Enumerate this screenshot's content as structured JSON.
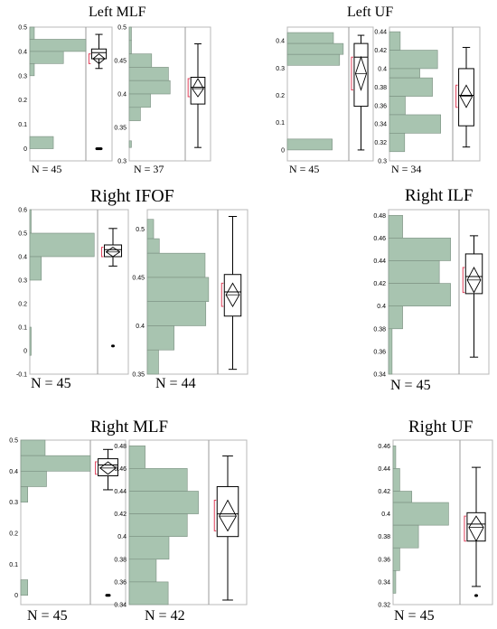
{
  "chart_data": [
    {
      "id": "lmlf_a",
      "type": "histogram",
      "title": "Left MLF",
      "n_label": "N = 45",
      "color": "#a8c4b0",
      "ylim": [
        -0.05,
        0.5
      ],
      "ticks": [
        "0",
        "0.1",
        "0.2",
        "0.3",
        "0.4",
        "0.5"
      ],
      "tick_values": [
        0,
        0.1,
        0.2,
        0.3,
        0.4,
        0.5
      ],
      "bins": [
        [
          0.45,
          0.5,
          0.08
        ],
        [
          0.4,
          0.45,
          1.0
        ],
        [
          0.35,
          0.4,
          0.6
        ],
        [
          0.3,
          0.35,
          0.08
        ],
        [
          0,
          0.05,
          0.42
        ]
      ],
      "box": {
        "min": 0.33,
        "q1": 0.37,
        "median": 0.395,
        "q3": 0.41,
        "max": 0.47,
        "mean": 0.37,
        "ci": [
          0.35,
          0.39
        ],
        "outliers": [
          0.0,
          0.0,
          0.0
        ]
      }
    },
    {
      "id": "lmlf_b",
      "type": "histogram",
      "title": "",
      "n_label": "N = 37",
      "color": "#a8c4b0",
      "ylim": [
        0.3,
        0.5
      ],
      "ticks": [
        "0.3",
        "0.35",
        "0.4",
        "0.45",
        "0.5"
      ],
      "tick_values": [
        0.3,
        0.35,
        0.4,
        0.45,
        0.5
      ],
      "bins": [
        [
          0.48,
          0.5,
          0.04
        ],
        [
          0.46,
          0.48,
          0.04
        ],
        [
          0.44,
          0.46,
          0.4
        ],
        [
          0.42,
          0.44,
          0.7
        ],
        [
          0.4,
          0.42,
          0.73
        ],
        [
          0.38,
          0.4,
          0.38
        ],
        [
          0.36,
          0.38,
          0.2
        ],
        [
          0.32,
          0.33,
          0.04
        ]
      ],
      "box": {
        "min": 0.32,
        "q1": 0.385,
        "median": 0.41,
        "q3": 0.425,
        "max": 0.475,
        "mean": 0.408,
        "ci": [
          0.396,
          0.423
        ],
        "outliers": []
      }
    },
    {
      "id": "luf_a",
      "type": "histogram",
      "title": "Left UF",
      "n_label": "N = 45",
      "color": "#a8c4b0",
      "ylim": [
        -0.04,
        0.45
      ],
      "ticks": [
        "0",
        "0.1",
        "0.2",
        "0.3",
        "0.4"
      ],
      "tick_values": [
        0,
        0.1,
        0.2,
        0.3,
        0.4
      ],
      "bins": [
        [
          0.39,
          0.43,
          0.75
        ],
        [
          0.35,
          0.39,
          0.91
        ],
        [
          0.31,
          0.35,
          0.85
        ],
        [
          0,
          0.04,
          0.73
        ]
      ],
      "box": {
        "min": 0.0,
        "q1": 0.16,
        "median": 0.34,
        "q3": 0.39,
        "max": 0.42,
        "mean": 0.28,
        "ci": [
          0.22,
          0.34
        ],
        "outliers": []
      }
    },
    {
      "id": "luf_b",
      "type": "histogram",
      "title": "",
      "n_label": "N = 34",
      "color": "#a8c4b0",
      "ylim": [
        0.3,
        0.445
      ],
      "ticks": [
        "0.3",
        "0.32",
        "0.34",
        "0.36",
        "0.38",
        "0.4",
        "0.42",
        "0.44"
      ],
      "tick_values": [
        0.3,
        0.32,
        0.34,
        0.36,
        0.38,
        0.4,
        0.42,
        0.44
      ],
      "bins": [
        [
          0.42,
          0.44,
          0.17
        ],
        [
          0.4,
          0.42,
          0.76
        ],
        [
          0.39,
          0.4,
          0.48
        ],
        [
          0.37,
          0.39,
          0.68
        ],
        [
          0.35,
          0.37,
          0.25
        ],
        [
          0.33,
          0.35,
          0.81
        ],
        [
          0.31,
          0.33,
          0.24
        ]
      ],
      "box": {
        "min": 0.315,
        "q1": 0.338,
        "median": 0.371,
        "q3": 0.4,
        "max": 0.423,
        "mean": 0.37,
        "ci": [
          0.358,
          0.382
        ],
        "outliers": []
      }
    },
    {
      "id": "rifof_a",
      "type": "histogram",
      "title": "Right IFOF",
      "n_label": "N = 45",
      "color": "#a8c4b0",
      "ylim": [
        -0.1,
        0.6
      ],
      "ticks": [
        "-0.1",
        "0",
        "0.1",
        "0.2",
        "0.3",
        "0.4",
        "0.5",
        "0.6"
      ],
      "tick_values": [
        -0.1,
        0,
        0.1,
        0.2,
        0.3,
        0.4,
        0.5,
        0.6
      ],
      "bins": [
        [
          0.5,
          0.6,
          0.02
        ],
        [
          0.4,
          0.5,
          0.95
        ],
        [
          0.3,
          0.4,
          0.17
        ],
        [
          -0.02,
          0.1,
          0.02
        ]
      ],
      "box": {
        "min": 0.36,
        "q1": 0.4,
        "median": 0.43,
        "q3": 0.45,
        "max": 0.52,
        "mean": 0.42,
        "ci": [
          0.4,
          0.44
        ],
        "outliers": [
          0.02
        ]
      }
    },
    {
      "id": "rifof_b",
      "type": "histogram",
      "title": "",
      "n_label": "N = 44",
      "color": "#a8c4b0",
      "ylim": [
        0.35,
        0.52
      ],
      "ticks": [
        "0.35",
        "0.4",
        "0.45",
        "0.5"
      ],
      "tick_values": [
        0.35,
        0.4,
        0.45,
        0.5
      ],
      "bins": [
        [
          0.49,
          0.51,
          0.09
        ],
        [
          0.475,
          0.49,
          0.17
        ],
        [
          0.45,
          0.475,
          0.82
        ],
        [
          0.425,
          0.45,
          0.87
        ],
        [
          0.4,
          0.425,
          0.83
        ],
        [
          0.375,
          0.4,
          0.38
        ],
        [
          0.35,
          0.375,
          0.16
        ]
      ],
      "box": {
        "min": 0.355,
        "q1": 0.41,
        "median": 0.435,
        "q3": 0.453,
        "max": 0.513,
        "mean": 0.432,
        "ci": [
          0.42,
          0.444
        ],
        "outliers": []
      }
    },
    {
      "id": "rilf",
      "type": "histogram",
      "title": "Right ILF",
      "n_label": "N = 45",
      "color": "#a8c4b0",
      "ylim": [
        0.34,
        0.485
      ],
      "ticks": [
        "0.34",
        "0.36",
        "0.38",
        "0.4",
        "0.42",
        "0.44",
        "0.46",
        "0.48"
      ],
      "tick_values": [
        0.34,
        0.36,
        0.38,
        0.4,
        0.42,
        0.44,
        0.46,
        0.48
      ],
      "bins": [
        [
          0.46,
          0.48,
          0.2
        ],
        [
          0.44,
          0.46,
          0.88
        ],
        [
          0.42,
          0.44,
          0.72
        ],
        [
          0.4,
          0.42,
          0.88
        ],
        [
          0.38,
          0.4,
          0.2
        ],
        [
          0.34,
          0.38,
          0.05
        ]
      ],
      "box": {
        "min": 0.355,
        "q1": 0.411,
        "median": 0.426,
        "q3": 0.446,
        "max": 0.462,
        "mean": 0.423,
        "ci": [
          0.412,
          0.434
        ],
        "outliers": []
      }
    },
    {
      "id": "rmlf_a",
      "type": "histogram",
      "title": "Right MLF",
      "n_label": "N = 45",
      "color": "#a8c4b0",
      "ylim": [
        -0.03,
        0.5
      ],
      "ticks": [
        "0",
        "0.1",
        "0.2",
        "0.3",
        "0.4",
        "0.5"
      ],
      "tick_values": [
        0,
        0.1,
        0.2,
        0.3,
        0.4,
        0.5
      ],
      "bins": [
        [
          0.45,
          0.5,
          0.35
        ],
        [
          0.4,
          0.45,
          1.0
        ],
        [
          0.35,
          0.4,
          0.37
        ],
        [
          0.3,
          0.35,
          0.1
        ],
        [
          0.0,
          0.05,
          0.1
        ]
      ],
      "box": {
        "min": 0.34,
        "q1": 0.385,
        "median": 0.42,
        "q3": 0.44,
        "max": 0.47,
        "mean": 0.41,
        "ci": [
          0.39,
          0.43
        ],
        "outliers": [
          0.0,
          0.0
        ]
      }
    },
    {
      "id": "rmlf_b",
      "type": "histogram",
      "title": "",
      "n_label": "N = 42",
      "color": "#a8c4b0",
      "ylim": [
        0.34,
        0.485
      ],
      "ticks": [
        "0.34",
        "0.36",
        "0.38",
        "0.4",
        "0.42",
        "0.44",
        "0.46",
        "0.48"
      ],
      "tick_values": [
        0.34,
        0.36,
        0.38,
        0.4,
        0.42,
        0.44,
        0.46,
        0.48
      ],
      "bins": [
        [
          0.46,
          0.48,
          0.2
        ],
        [
          0.44,
          0.46,
          0.73
        ],
        [
          0.42,
          0.44,
          0.87
        ],
        [
          0.4,
          0.42,
          0.73
        ],
        [
          0.38,
          0.4,
          0.5
        ],
        [
          0.36,
          0.38,
          0.34
        ],
        [
          0.34,
          0.36,
          0.49
        ]
      ],
      "box": {
        "min": 0.344,
        "q1": 0.4,
        "median": 0.42,
        "q3": 0.444,
        "max": 0.471,
        "mean": 0.418,
        "ci": [
          0.405,
          0.432
        ],
        "outliers": []
      }
    },
    {
      "id": "ruf",
      "type": "histogram",
      "title": "Right UF",
      "n_label": "N = 45",
      "color": "#a8c4b0",
      "ylim": [
        0.32,
        0.465
      ],
      "ticks": [
        "0.32",
        "0.34",
        "0.36",
        "0.38",
        "0.4",
        "0.42",
        "0.44",
        "0.46"
      ],
      "tick_values": [
        0.32,
        0.34,
        0.36,
        0.38,
        0.4,
        0.42,
        0.44,
        0.46
      ],
      "bins": [
        [
          0.44,
          0.46,
          0.04
        ],
        [
          0.42,
          0.44,
          0.1
        ],
        [
          0.41,
          0.42,
          0.28
        ],
        [
          0.39,
          0.41,
          0.83
        ],
        [
          0.37,
          0.39,
          0.38
        ],
        [
          0.35,
          0.37,
          0.1
        ],
        [
          0.33,
          0.35,
          0.04
        ]
      ],
      "box": {
        "min": 0.336,
        "q1": 0.376,
        "median": 0.391,
        "q3": 0.401,
        "max": 0.441,
        "mean": 0.388,
        "ci": [
          0.376,
          0.398
        ],
        "outliers": [
          0.328
        ]
      }
    }
  ]
}
